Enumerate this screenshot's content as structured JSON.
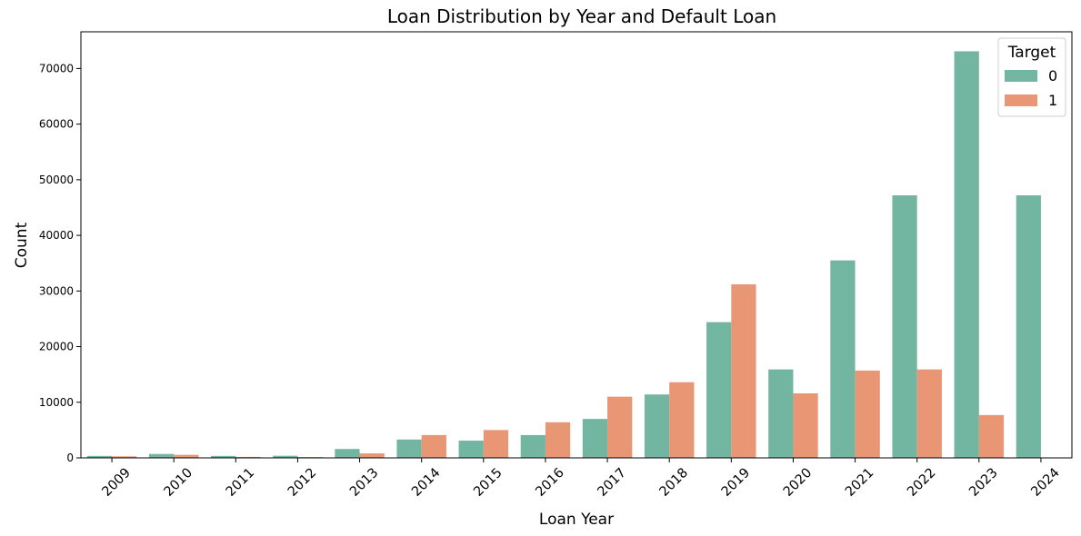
{
  "chart_data": {
    "type": "bar",
    "title": "Loan Distribution by Year and Default Loan",
    "xlabel": "Loan Year",
    "ylabel": "Count",
    "categories": [
      "2009",
      "2010",
      "2011",
      "2012",
      "2013",
      "2014",
      "2015",
      "2016",
      "2017",
      "2018",
      "2019",
      "2020",
      "2021",
      "2022",
      "2023",
      "2024"
    ],
    "series": [
      {
        "name": "0",
        "color": "#72b6a1",
        "values": [
          350,
          700,
          350,
          380,
          1600,
          3300,
          3100,
          4100,
          7000,
          11400,
          24400,
          15900,
          35500,
          47200,
          73100,
          47200
        ]
      },
      {
        "name": "1",
        "color": "#e99675",
        "values": [
          280,
          550,
          180,
          150,
          800,
          4100,
          5000,
          6400,
          11000,
          13600,
          31200,
          11600,
          15700,
          15900,
          7700,
          0
        ]
      }
    ],
    "ylim": [
      0,
      76600
    ],
    "yticks": [
      0,
      10000,
      20000,
      30000,
      40000,
      50000,
      60000,
      70000
    ],
    "legend": {
      "title": "Target",
      "placement": "top-right"
    },
    "grid": false
  }
}
